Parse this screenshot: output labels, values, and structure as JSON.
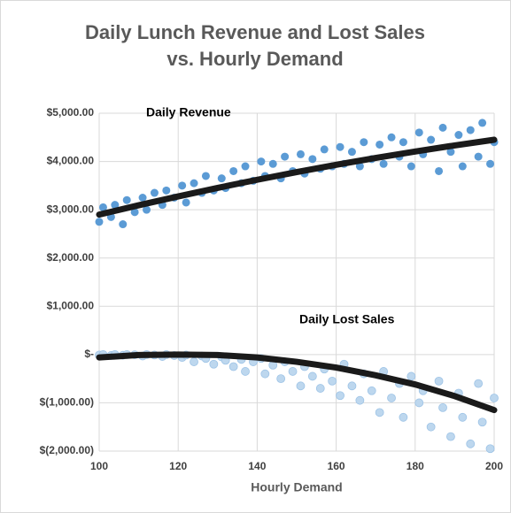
{
  "chart_data": {
    "type": "scatter",
    "title": "Daily Lunch Revenue and Lost Sales vs. Hourly Demand",
    "x_label": "Hourly Demand",
    "xlim": [
      100,
      200
    ],
    "xticks": [
      100,
      120,
      140,
      160,
      180,
      200
    ],
    "ylim": [
      -2000,
      5000
    ],
    "yticks": [
      {
        "value": -2000,
        "label": "$(2,000.00)"
      },
      {
        "value": -1000,
        "label": "$(1,000.00)"
      },
      {
        "value": 0,
        "label": "$-"
      },
      {
        "value": 1000,
        "label": "$1,000.00"
      },
      {
        "value": 2000,
        "label": "$2,000.00"
      },
      {
        "value": 3000,
        "label": "$3,000.00"
      },
      {
        "value": 4000,
        "label": "$4,000.00"
      },
      {
        "value": 5000,
        "label": "$5,000.00"
      }
    ],
    "grid": true,
    "series": [
      {
        "name": "Daily Revenue",
        "color": "#5b9bd5",
        "x": [
          100,
          101,
          103,
          104,
          106,
          107,
          109,
          111,
          112,
          114,
          116,
          117,
          119,
          121,
          122,
          124,
          126,
          127,
          129,
          131,
          132,
          134,
          136,
          137,
          139,
          141,
          142,
          144,
          146,
          147,
          149,
          151,
          152,
          154,
          156,
          157,
          159,
          161,
          162,
          164,
          166,
          167,
          169,
          171,
          172,
          174,
          176,
          177,
          179,
          181,
          182,
          184,
          186,
          187,
          189,
          191,
          192,
          194,
          196,
          197,
          199,
          200
        ],
        "values": [
          2750,
          3050,
          2850,
          3100,
          2700,
          3200,
          2950,
          3250,
          3000,
          3350,
          3100,
          3400,
          3250,
          3500,
          3150,
          3550,
          3350,
          3700,
          3400,
          3650,
          3450,
          3800,
          3550,
          3900,
          3600,
          4000,
          3700,
          3950,
          3650,
          4100,
          3800,
          4150,
          3750,
          4050,
          3850,
          4250,
          3900,
          4300,
          3950,
          4200,
          3900,
          4400,
          4050,
          4350,
          3950,
          4500,
          4100,
          4400,
          3900,
          4600,
          4150,
          4450,
          3800,
          4700,
          4200,
          4550,
          3900,
          4650,
          4100,
          4800,
          3950,
          4400
        ]
      },
      {
        "name": "Daily Lost Sales",
        "color": "#bdd7ee",
        "x": [
          100,
          101,
          103,
          104,
          106,
          107,
          109,
          111,
          112,
          114,
          116,
          117,
          119,
          121,
          122,
          124,
          126,
          127,
          129,
          131,
          132,
          134,
          136,
          137,
          139,
          141,
          142,
          144,
          146,
          147,
          149,
          151,
          152,
          154,
          156,
          157,
          159,
          161,
          162,
          164,
          166,
          167,
          169,
          171,
          172,
          174,
          176,
          177,
          179,
          181,
          182,
          184,
          186,
          187,
          189,
          191,
          192,
          194,
          196,
          197,
          199,
          200
        ],
        "values": [
          -10,
          0,
          -20,
          0,
          -15,
          0,
          -5,
          -30,
          0,
          -10,
          -40,
          0,
          -20,
          -60,
          -10,
          -150,
          -30,
          -80,
          -200,
          -50,
          -120,
          -250,
          -100,
          -350,
          -150,
          -80,
          -400,
          -220,
          -500,
          -150,
          -350,
          -650,
          -250,
          -450,
          -700,
          -300,
          -550,
          -850,
          -200,
          -650,
          -950,
          -400,
          -750,
          -1200,
          -350,
          -900,
          -600,
          -1300,
          -450,
          -1000,
          -750,
          -1500,
          -550,
          -1100,
          -1700,
          -800,
          -1300,
          -1850,
          -600,
          -1400,
          -1950,
          -900
        ]
      }
    ],
    "trendlines": [
      {
        "color": "#1a1a1a",
        "x": [
          100,
          110,
          120,
          130,
          140,
          150,
          160,
          170,
          180,
          190,
          200
        ],
        "values": [
          2900,
          3093,
          3277,
          3453,
          3621,
          3780,
          3931,
          4073,
          4207,
          4333,
          4450
        ]
      },
      {
        "color": "#1a1a1a",
        "x": [
          100,
          110,
          120,
          130,
          140,
          150,
          160,
          170,
          180,
          190,
          200
        ],
        "values": [
          -60,
          -10,
          0,
          -10,
          -60,
          -150,
          -270,
          -430,
          -620,
          -860,
          -1150
        ]
      }
    ]
  }
}
